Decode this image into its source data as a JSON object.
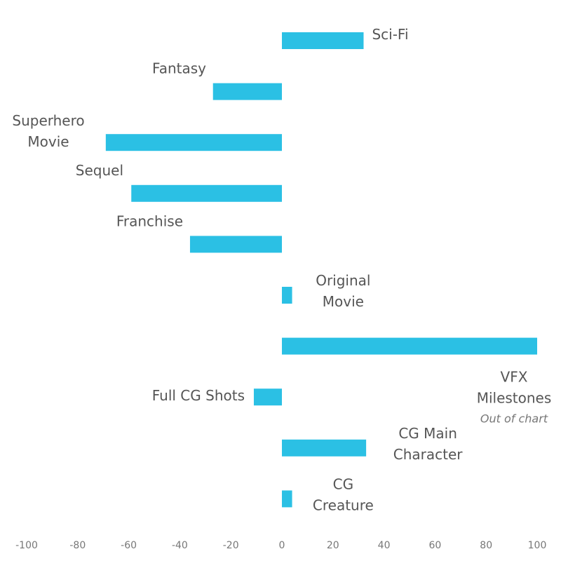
{
  "chart_data": {
    "type": "bar",
    "orientation": "horizontal",
    "title": "",
    "xlabel": "",
    "ylabel": "",
    "xlim": [
      -100,
      100
    ],
    "grid": false,
    "legend": "none",
    "bar_color": "#2bc0e4",
    "x_ticks": [
      "-100",
      "-80",
      "-60",
      "-40",
      "-20",
      "0",
      "20",
      "40",
      "60",
      "80",
      "100"
    ],
    "categories": [
      "Sci-Fi",
      "Fantasy",
      "Superhero Movie",
      "Sequel",
      "Franchise",
      "Original Movie",
      "VFX Milestones",
      "Full CG Shots",
      "CG Main Character",
      "CG Creature"
    ],
    "category_label_lines": [
      [
        "Sci-Fi"
      ],
      [
        "Fantasy"
      ],
      [
        "Superhero",
        "Movie"
      ],
      [
        "Sequel"
      ],
      [
        "Franchise"
      ],
      [
        "Original",
        "Movie"
      ],
      [
        "VFX",
        "Milestones"
      ],
      [
        "Full CG Shots"
      ],
      [
        "CG Main",
        "Character"
      ],
      [
        "CG",
        "Creature"
      ]
    ],
    "values": [
      32,
      -27,
      -69,
      -59,
      -36,
      4,
      100,
      -11,
      33,
      4
    ],
    "annotations": [
      {
        "category": "VFX Milestones",
        "text": "Out of chart"
      }
    ]
  }
}
